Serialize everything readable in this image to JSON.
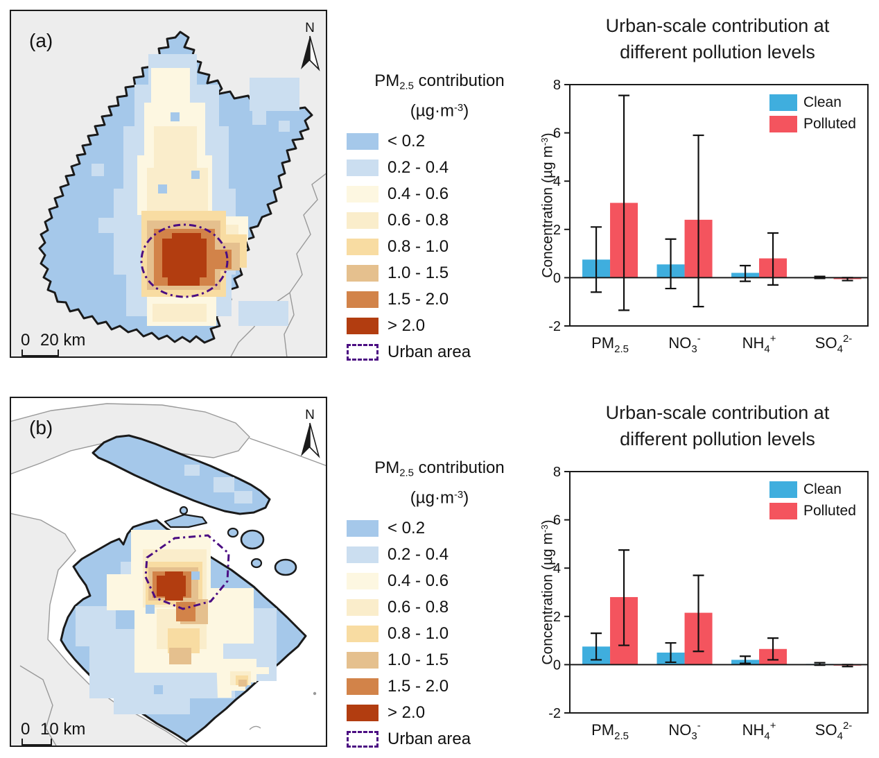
{
  "maps": [
    {
      "panel_label": "(a)",
      "north_label": "N",
      "scale": {
        "start": "0",
        "end": "20 km"
      }
    },
    {
      "panel_label": "(b)",
      "north_label": "N",
      "scale": {
        "start": "0",
        "end": "10 km"
      }
    }
  ],
  "map_legend": {
    "title": {
      "base": "PM",
      "sub": "2.5",
      "rest": " contribution"
    },
    "unit": {
      "pre": "(µg·m",
      "sup": "-3",
      "post": ")"
    },
    "items": [
      {
        "label": "< 0.2",
        "color": "#A5C8EA"
      },
      {
        "label": "0.2 - 0.4",
        "color": "#CBDEF0"
      },
      {
        "label": "0.4 - 0.6",
        "color": "#FDF7E1"
      },
      {
        "label": "0.6 - 0.8",
        "color": "#FAEDCB"
      },
      {
        "label": "0.8 - 1.0",
        "color": "#F8DCA2"
      },
      {
        "label": "1.0 - 1.5",
        "color": "#E5C08E"
      },
      {
        "label": "1.5 - 2.0",
        "color": "#D28349"
      },
      {
        "label": "> 2.0",
        "color": "#B23D10"
      }
    ],
    "urban_area": {
      "label": "Urban area",
      "color": "#4B0D82"
    }
  },
  "colors": {
    "map_background": "#EDEDED",
    "water": "#FFFFFF",
    "boundary": "#1A1A1A",
    "neighbor_boundary": "#999999",
    "clean": "#3FAEDE",
    "polluted": "#F4545E"
  },
  "chart_data": [
    {
      "type": "bar",
      "title": "Urban-scale contribution at different pollution levels",
      "title_line1": "Urban-scale contribution at",
      "title_line2": "different pollution levels",
      "ylabel": {
        "pre": "Concentration (µg m",
        "sup": "-3",
        "post": ")"
      },
      "ylim": [
        -2,
        8
      ],
      "yticks": [
        8,
        6,
        4,
        2,
        0,
        -2
      ],
      "grid": false,
      "legend_position": "top-right",
      "categories": [
        "PM2.5",
        "NO3-",
        "NH4+",
        "SO42-"
      ],
      "categories_fmt": [
        {
          "base": "PM",
          "sub": "2.5",
          "sup": ""
        },
        {
          "base": "NO",
          "sub": "3",
          "sup": "-"
        },
        {
          "base": "NH",
          "sub": "4",
          "sup": "+"
        },
        {
          "base": "SO",
          "sub": "4",
          "sup": "2-"
        }
      ],
      "series": [
        {
          "name": "Clean",
          "color": "#3FAEDE",
          "values": [
            0.75,
            0.55,
            0.2,
            0.02
          ],
          "err_low": [
            -0.6,
            -0.45,
            -0.15,
            -0.03
          ],
          "err_high": [
            2.1,
            1.6,
            0.5,
            0.05
          ]
        },
        {
          "name": "Polluted",
          "color": "#F4545E",
          "values": [
            3.1,
            2.4,
            0.8,
            -0.06
          ],
          "err_low": [
            -1.35,
            -1.2,
            -0.3,
            -0.12
          ],
          "err_high": [
            7.55,
            5.9,
            1.85,
            0.0
          ]
        }
      ]
    },
    {
      "type": "bar",
      "title": "Urban-scale contribution at different pollution levels",
      "title_line1": "Urban-scale contribution at",
      "title_line2": "different pollution levels",
      "ylabel": {
        "pre": "Concentration (µg m",
        "sup": "-3",
        "post": ")"
      },
      "ylim": [
        -2,
        8
      ],
      "yticks": [
        8,
        6,
        4,
        2,
        0,
        -2
      ],
      "grid": false,
      "legend_position": "top-right",
      "categories": [
        "PM2.5",
        "NO3-",
        "NH4+",
        "SO42-"
      ],
      "categories_fmt": [
        {
          "base": "PM",
          "sub": "2.5",
          "sup": ""
        },
        {
          "base": "NO",
          "sub": "3",
          "sup": "-"
        },
        {
          "base": "NH",
          "sub": "4",
          "sup": "+"
        },
        {
          "base": "SO",
          "sub": "4",
          "sup": "2-"
        }
      ],
      "series": [
        {
          "name": "Clean",
          "color": "#3FAEDE",
          "values": [
            0.75,
            0.5,
            0.2,
            0.03
          ],
          "err_low": [
            0.2,
            0.1,
            0.05,
            -0.02
          ],
          "err_high": [
            1.3,
            0.9,
            0.35,
            0.08
          ]
        },
        {
          "name": "Polluted",
          "color": "#F4545E",
          "values": [
            2.8,
            2.15,
            0.65,
            -0.04
          ],
          "err_low": [
            0.8,
            0.55,
            0.2,
            -0.08
          ],
          "err_high": [
            4.75,
            3.7,
            1.1,
            0.0
          ]
        }
      ]
    }
  ]
}
